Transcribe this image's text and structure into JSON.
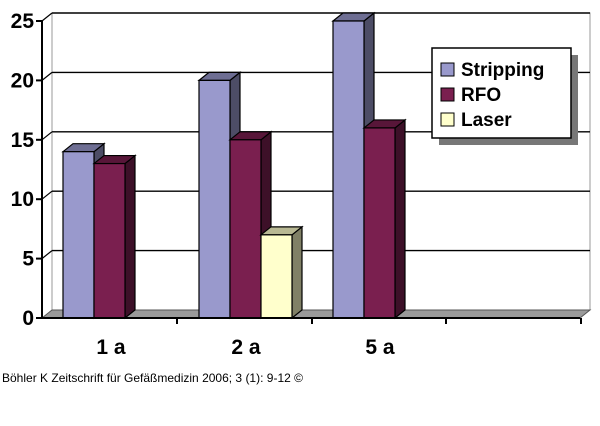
{
  "chart_data": {
    "type": "bar",
    "categories": [
      "1 a",
      "2 a",
      "5 a"
    ],
    "series": [
      {
        "name": "Stripping",
        "values": [
          14,
          20,
          25
        ],
        "color": "#9999CC"
      },
      {
        "name": "RFO",
        "values": [
          13,
          15,
          16
        ],
        "color": "#7A1F4F"
      },
      {
        "name": "Laser",
        "values": [
          null,
          7,
          null
        ],
        "color": "#FFFFCC"
      }
    ],
    "title": "",
    "xlabel": "",
    "ylabel": "",
    "ylim": [
      0,
      25
    ],
    "yticks": [
      "0",
      "5",
      "10",
      "15",
      "20",
      "25"
    ],
    "grid": true,
    "legend_position": "top-right",
    "style": "3d-bar"
  },
  "footer": {
    "source": "Böhler K Zeitschrift für Gefäßmedizin 2006; 3 (1): 9-12 ©"
  }
}
